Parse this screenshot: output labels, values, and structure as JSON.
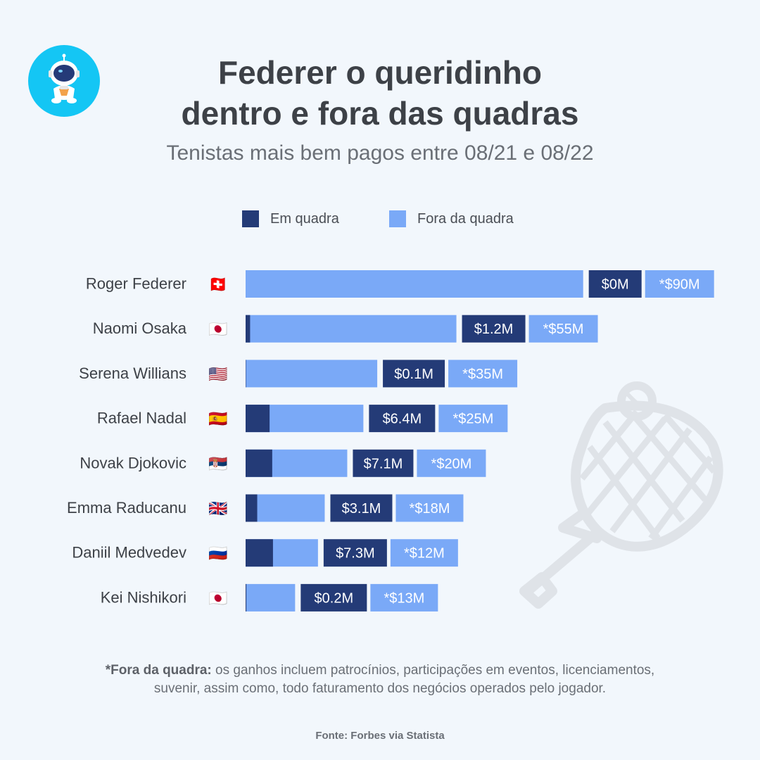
{
  "title_line1": "Federer o queridinho",
  "title_line2": "dentro e fora das quadras",
  "subtitle": "Tenistas mais bem pagos entre 08/21 e 08/22",
  "legend": [
    {
      "label": "Em quadra",
      "color": "#243b77"
    },
    {
      "label": "Fora da quadra",
      "color": "#7aa9f7"
    }
  ],
  "chart_data": {
    "type": "bar",
    "orientation": "horizontal",
    "stacked": true,
    "categories": [
      "Roger Federer",
      "Naomi Osaka",
      "Serena Willians",
      "Rafael Nadal",
      "Novak Djokovic",
      "Emma Raducanu",
      "Daniil Medvedev",
      "Kei Nishikori"
    ],
    "flags": [
      "🇨🇭",
      "🇯🇵",
      "🇺🇸",
      "🇪🇸",
      "🇷🇸",
      "🇬🇧",
      "🇷🇺",
      "🇯🇵"
    ],
    "series": [
      {
        "name": "Em quadra",
        "color": "#243b77",
        "values": [
          0,
          1.2,
          0.1,
          6.4,
          7.1,
          3.1,
          7.3,
          0.2
        ],
        "labels": [
          "$0M",
          "$1.2M",
          "$0.1M",
          "$6.4M",
          "$7.1M",
          "$3.1M",
          "$7.3M",
          "$0.2M"
        ]
      },
      {
        "name": "Fora da quadra",
        "color": "#7aa9f7",
        "values": [
          90,
          55,
          35,
          25,
          20,
          18,
          12,
          13
        ],
        "labels": [
          "*$90M",
          "*$55M",
          "*$35M",
          "*$25M",
          "*$20M",
          "*$18M",
          "*$12M",
          "*$13M"
        ]
      }
    ]
  },
  "footnote_bold": "*Fora da quadra:",
  "footnote_line1": " os ganhos incluem patrocínios, participações em eventos, licenciamentos,",
  "footnote_line2": "suvenir, assim como, todo faturamento dos negócios operados pelo jogador.",
  "source": "Fonte: Forbes via Statista"
}
